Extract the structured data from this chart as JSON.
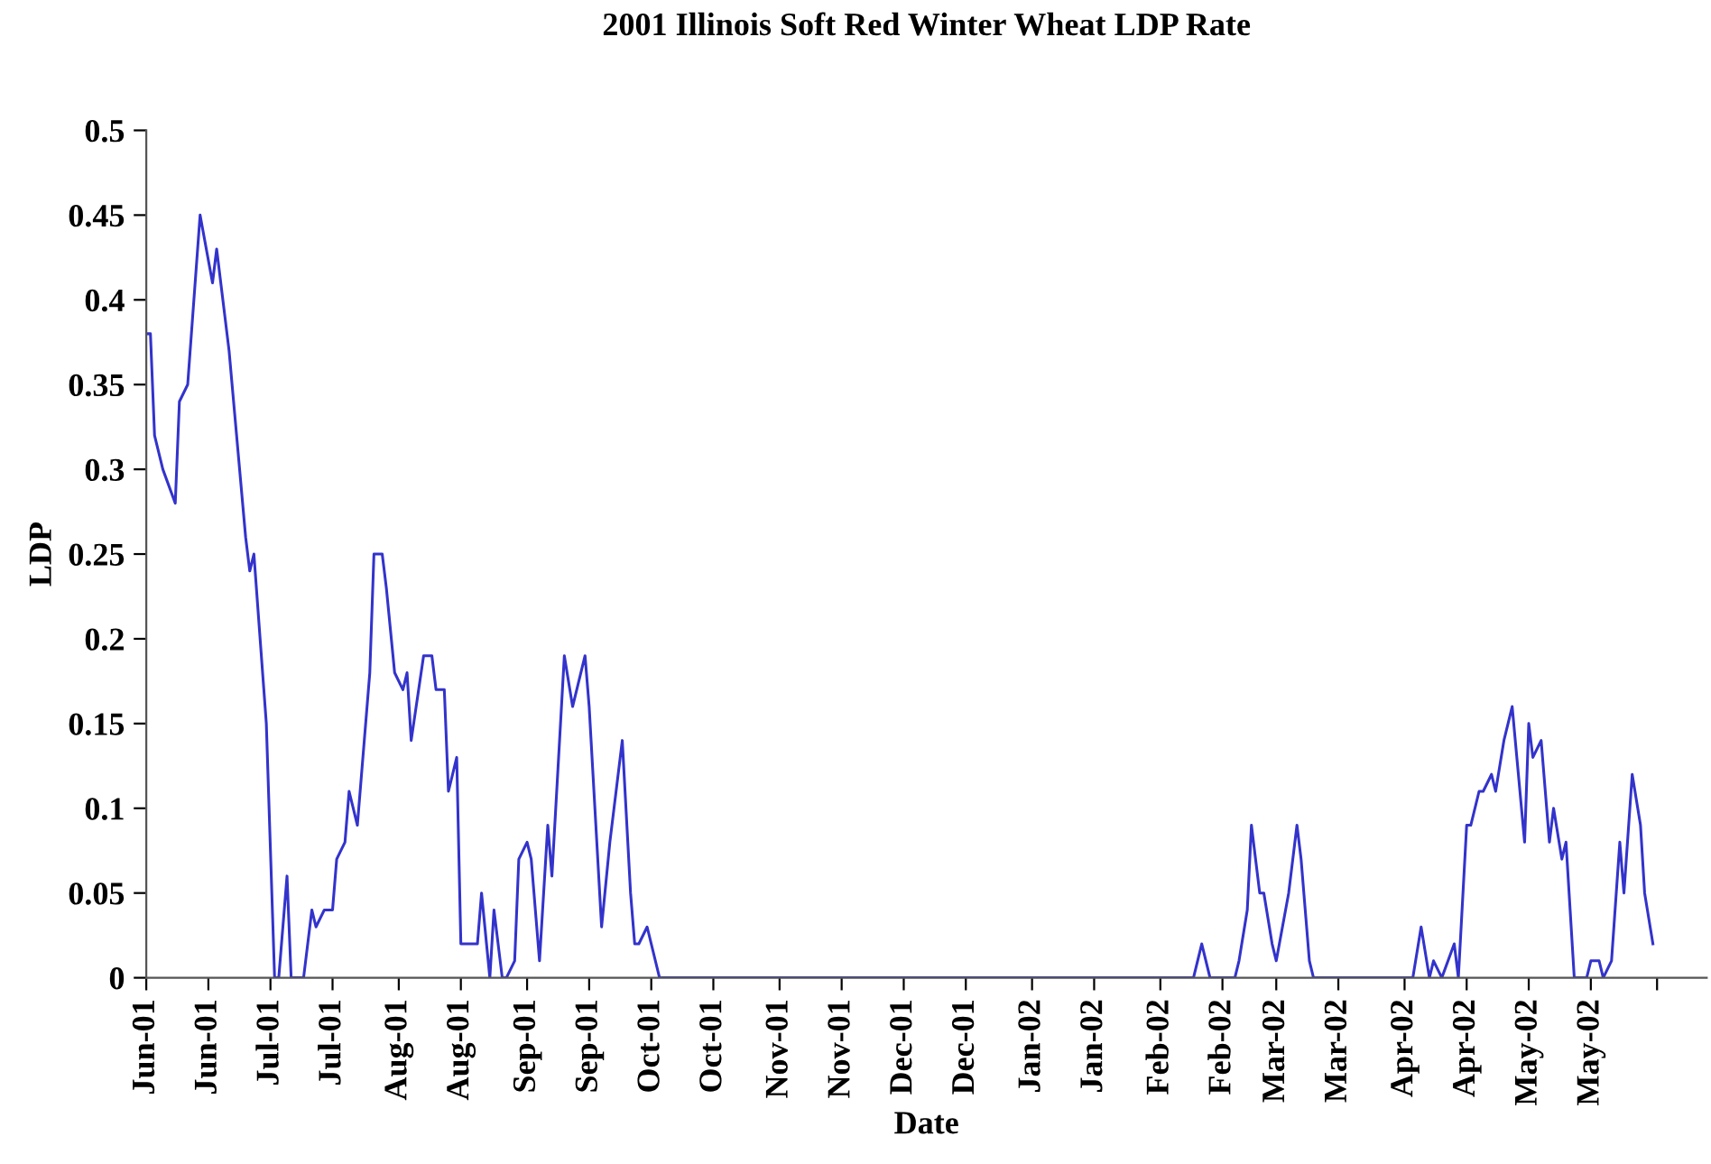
{
  "chart_data": {
    "type": "line",
    "title": "2001 Illinois Soft Red Winter Wheat LDP Rate",
    "xlabel": "Date",
    "ylabel": "LDP",
    "x": [
      "2001-06-01",
      "2001-06-02",
      "2001-06-03",
      "2001-06-05",
      "2001-06-08",
      "2001-06-09",
      "2001-06-11",
      "2001-06-14",
      "2001-06-17",
      "2001-06-18",
      "2001-06-21",
      "2001-06-25",
      "2001-06-26",
      "2001-06-27",
      "2001-06-30",
      "2001-07-02",
      "2001-07-03",
      "2001-07-05",
      "2001-07-06",
      "2001-07-09",
      "2001-07-11",
      "2001-07-12",
      "2001-07-14",
      "2001-07-16",
      "2001-07-17",
      "2001-07-19",
      "2001-07-20",
      "2001-07-22",
      "2001-07-25",
      "2001-07-26",
      "2001-07-28",
      "2001-07-29",
      "2001-07-31",
      "2001-08-02",
      "2001-08-03",
      "2001-08-04",
      "2001-08-07",
      "2001-08-09",
      "2001-08-10",
      "2001-08-12",
      "2001-08-13",
      "2001-08-15",
      "2001-08-16",
      "2001-08-20",
      "2001-08-21",
      "2001-08-23",
      "2001-08-24",
      "2001-08-26",
      "2001-08-27",
      "2001-08-29",
      "2001-08-30",
      "2001-09-01",
      "2001-09-02",
      "2001-09-04",
      "2001-09-06",
      "2001-09-07",
      "2001-09-10",
      "2001-09-12",
      "2001-09-15",
      "2001-09-16",
      "2001-09-19",
      "2001-09-21",
      "2001-09-24",
      "2001-09-26",
      "2001-09-27",
      "2001-09-28",
      "2001-09-30",
      "2001-10-03",
      "2002-02-09",
      "2002-02-11",
      "2002-02-13",
      "2002-02-19",
      "2002-02-20",
      "2002-02-22",
      "2002-02-23",
      "2002-02-25",
      "2002-02-26",
      "2002-02-28",
      "2002-03-01",
      "2002-03-04",
      "2002-03-06",
      "2002-03-07",
      "2002-03-09",
      "2002-03-10",
      "2002-04-03",
      "2002-04-05",
      "2002-04-07",
      "2002-04-08",
      "2002-04-10",
      "2002-04-13",
      "2002-04-14",
      "2002-04-16",
      "2002-04-17",
      "2002-04-19",
      "2002-04-20",
      "2002-04-22",
      "2002-04-23",
      "2002-04-25",
      "2002-04-27",
      "2002-04-30",
      "2002-05-01",
      "2002-05-02",
      "2002-05-04",
      "2002-05-06",
      "2002-05-07",
      "2002-05-09",
      "2002-05-10",
      "2002-05-12",
      "2002-05-15",
      "2002-05-16",
      "2002-05-18",
      "2002-05-19",
      "2002-05-21",
      "2002-05-23",
      "2002-05-24",
      "2002-05-26",
      "2002-05-28",
      "2002-05-29",
      "2002-05-31"
    ],
    "series": [
      {
        "color": "#3333cc",
        "values": [
          0.38,
          0.38,
          0.32,
          0.3,
          0.28,
          0.34,
          0.35,
          0.45,
          0.41,
          0.43,
          0.37,
          0.26,
          0.24,
          0.25,
          0.15,
          0,
          0,
          0.06,
          0,
          0,
          0.04,
          0.03,
          0.04,
          0.04,
          0.07,
          0.08,
          0.11,
          0.09,
          0.18,
          0.25,
          0.25,
          0.23,
          0.18,
          0.17,
          0.18,
          0.14,
          0.19,
          0.19,
          0.17,
          0.17,
          0.11,
          0.13,
          0.02,
          0.02,
          0.05,
          0,
          0.04,
          0,
          0,
          0.01,
          0.07,
          0.08,
          0.07,
          0.01,
          0.09,
          0.06,
          0.19,
          0.16,
          0.19,
          0.16,
          0.03,
          0.08,
          0.14,
          0.05,
          0.02,
          0.02,
          0.03,
          0,
          0,
          0.02,
          0,
          0,
          0.01,
          0.04,
          0.09,
          0.05,
          0.05,
          0.02,
          0.01,
          0.05,
          0.09,
          0.07,
          0.01,
          0,
          0,
          0.03,
          0,
          0.01,
          0,
          0.02,
          0,
          0.09,
          0.09,
          0.11,
          0.11,
          0.12,
          0.11,
          0.14,
          0.16,
          0.08,
          0.15,
          0.13,
          0.14,
          0.08,
          0.1,
          0.07,
          0.08,
          0,
          0,
          0.01,
          0.01,
          0,
          0.01,
          0.08,
          0.05,
          0.12,
          0.09,
          0.05,
          0.02
        ]
      }
    ],
    "xlim": [
      "2001-06-01",
      "2002-06-13"
    ],
    "xticks": [
      {
        "value": "2001-06-01",
        "label": "Jun-01"
      },
      {
        "value": "2001-06-16",
        "label": "Jun-01"
      },
      {
        "value": "2001-07-01",
        "label": "Jul-01"
      },
      {
        "value": "2001-07-16",
        "label": "Jul-01"
      },
      {
        "value": "2001-08-01",
        "label": "Aug-01"
      },
      {
        "value": "2001-08-16",
        "label": "Aug-01"
      },
      {
        "value": "2001-09-01",
        "label": "Sep-01"
      },
      {
        "value": "2001-09-16",
        "label": "Sep-01"
      },
      {
        "value": "2001-10-01",
        "label": "Oct-01"
      },
      {
        "value": "2001-10-16",
        "label": "Oct-01"
      },
      {
        "value": "2001-11-01",
        "label": "Nov-01"
      },
      {
        "value": "2001-11-16",
        "label": "Nov-01"
      },
      {
        "value": "2001-12-01",
        "label": "Dec-01"
      },
      {
        "value": "2001-12-16",
        "label": "Dec-01"
      },
      {
        "value": "2002-01-01",
        "label": "Jan-02"
      },
      {
        "value": "2002-01-16",
        "label": "Jan-02"
      },
      {
        "value": "2002-02-01",
        "label": "Feb-02"
      },
      {
        "value": "2002-02-16",
        "label": "Feb-02"
      },
      {
        "value": "2002-03-01",
        "label": "Mar-02"
      },
      {
        "value": "2002-03-16",
        "label": "Mar-02"
      },
      {
        "value": "2002-04-01",
        "label": "Apr-02"
      },
      {
        "value": "2002-04-16",
        "label": "Apr-02"
      },
      {
        "value": "2002-05-01",
        "label": "May-02"
      },
      {
        "value": "2002-05-16",
        "label": "May-02"
      },
      {
        "value": "2002-06-01",
        "label": null
      }
    ],
    "ylim": [
      0,
      0.5
    ],
    "yticks": [
      0,
      0.05,
      0.1,
      0.15,
      0.2,
      0.25,
      0.3,
      0.35,
      0.4,
      0.45,
      0.5
    ],
    "grid": false,
    "marker": "none",
    "line_style": "solid"
  }
}
